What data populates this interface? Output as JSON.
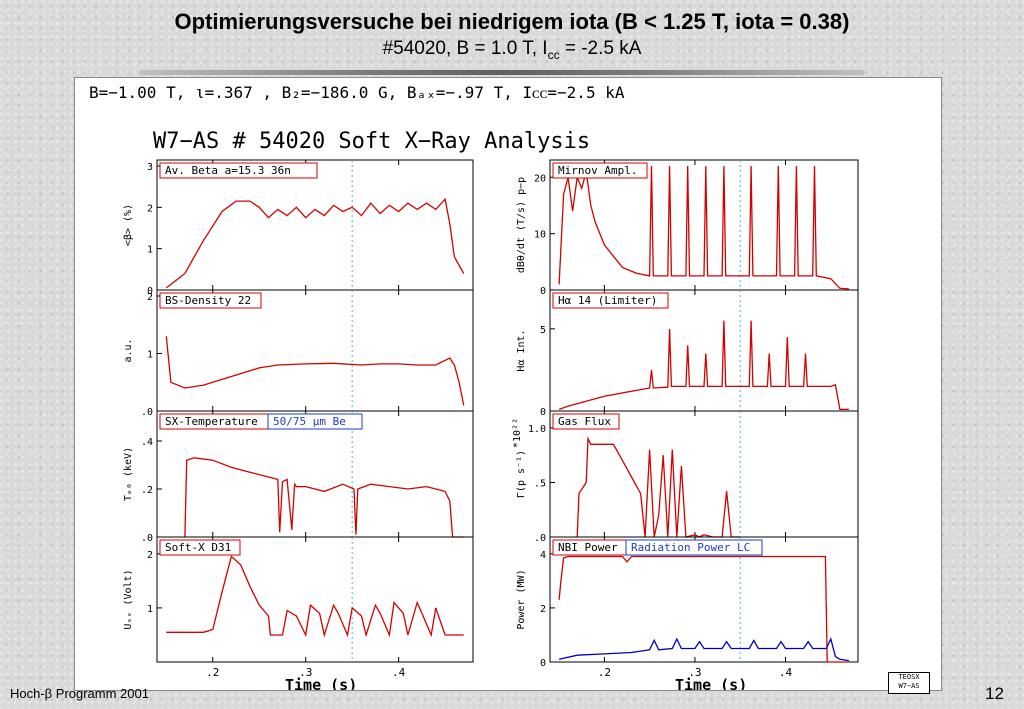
{
  "slide": {
    "title": "Optimierungsversuche bei niedrigem iota (B < 1.25 T, iota = 0.38)",
    "subtitle_main": "#54020, B = 1.0 T, I",
    "subtitle_sub": "cc",
    "subtitle_tail": " = -2.5 kA",
    "footer": "Hoch-β Programm 2001",
    "page": "12"
  },
  "figure": {
    "header_line": "B=−1.00 T, ι=.367  , B₂=−186.0 G, Bₐₓ=−.97   T, Iᴄᴄ=−2.5      kA",
    "title": "W7−AS # 54020   Soft X−Ray Analysis",
    "logo_line1": "TEOSX",
    "logo_line2": "W7−AS",
    "xlabel": "Time (s)"
  },
  "chart_data": [
    {
      "type": "line",
      "panel": "left-1",
      "title": "Av. Beta  a=15.3  36n",
      "ylabel": "<β> (%)",
      "ylim": [
        0,
        3
      ],
      "yticks": [
        "0",
        "1",
        "2",
        "3"
      ],
      "xlim": [
        0.14,
        0.48
      ],
      "marker_x": 0.35,
      "color": "#d40000",
      "x": [
        0.15,
        0.17,
        0.19,
        0.21,
        0.225,
        0.24,
        0.25,
        0.26,
        0.27,
        0.28,
        0.29,
        0.3,
        0.31,
        0.32,
        0.33,
        0.34,
        0.35,
        0.36,
        0.37,
        0.38,
        0.39,
        0.4,
        0.41,
        0.42,
        0.43,
        0.44,
        0.45,
        0.455,
        0.46,
        0.47
      ],
      "y": [
        0.05,
        0.4,
        1.2,
        1.9,
        2.15,
        2.15,
        2.0,
        1.75,
        1.95,
        1.8,
        2.0,
        1.75,
        1.95,
        1.8,
        2.05,
        1.9,
        2.0,
        1.8,
        2.1,
        1.85,
        2.05,
        1.9,
        2.1,
        1.95,
        2.1,
        1.95,
        2.2,
        1.6,
        0.8,
        0.4
      ]
    },
    {
      "type": "line",
      "panel": "left-2",
      "title": "BS-Density 22",
      "ylabel": "a.u.",
      "ylim": [
        0,
        2
      ],
      "yticks": [
        ".0",
        "1",
        "2"
      ],
      "xlim": [
        0.14,
        0.48
      ],
      "marker_x": 0.35,
      "color": "#d40000",
      "x": [
        0.15,
        0.155,
        0.17,
        0.19,
        0.22,
        0.25,
        0.27,
        0.3,
        0.33,
        0.36,
        0.38,
        0.4,
        0.42,
        0.44,
        0.455,
        0.46,
        0.465,
        0.47
      ],
      "y": [
        1.3,
        0.5,
        0.4,
        0.45,
        0.6,
        0.75,
        0.8,
        0.82,
        0.83,
        0.8,
        0.82,
        0.82,
        0.8,
        0.8,
        0.92,
        0.8,
        0.5,
        0.1
      ]
    },
    {
      "type": "line",
      "panel": "left-3",
      "title": "SX-Temperature",
      "label2": "50/75  μm Be",
      "ylabel": "Tₑ₀ (keV)",
      "ylim": [
        0,
        0.5
      ],
      "yticks": [
        ".0",
        ".2",
        ".4"
      ],
      "xlim": [
        0.14,
        0.48
      ],
      "marker_x": 0.35,
      "color": "#d40000",
      "x": [
        0.17,
        0.172,
        0.18,
        0.2,
        0.22,
        0.24,
        0.26,
        0.27,
        0.272,
        0.275,
        0.28,
        0.285,
        0.288,
        0.29,
        0.3,
        0.32,
        0.34,
        0.352,
        0.354,
        0.356,
        0.37,
        0.39,
        0.41,
        0.43,
        0.45,
        0.455,
        0.458,
        0.47
      ],
      "y": [
        0.0,
        0.32,
        0.33,
        0.32,
        0.29,
        0.27,
        0.25,
        0.24,
        0.02,
        0.23,
        0.24,
        0.03,
        0.22,
        0.21,
        0.21,
        0.19,
        0.22,
        0.2,
        0.01,
        0.2,
        0.22,
        0.21,
        0.2,
        0.21,
        0.19,
        0.15,
        0.0,
        0.0
      ]
    },
    {
      "type": "line",
      "panel": "left-4",
      "title": "Soft-X D31",
      "ylabel": "Uₛₓ (Volt)",
      "ylim": [
        0,
        2.2
      ],
      "yticks": [
        "1",
        "2"
      ],
      "xlim": [
        0.14,
        0.48
      ],
      "marker_x": 0.35,
      "color": "#d40000",
      "x": [
        0.15,
        0.19,
        0.2,
        0.21,
        0.22,
        0.23,
        0.24,
        0.25,
        0.26,
        0.262,
        0.275,
        0.28,
        0.29,
        0.3,
        0.305,
        0.315,
        0.32,
        0.33,
        0.335,
        0.345,
        0.35,
        0.36,
        0.365,
        0.375,
        0.38,
        0.39,
        0.395,
        0.405,
        0.41,
        0.42,
        0.425,
        0.435,
        0.44,
        0.45,
        0.47
      ],
      "y": [
        0.55,
        0.55,
        0.6,
        1.3,
        1.95,
        1.8,
        1.4,
        1.05,
        0.85,
        0.5,
        0.5,
        0.95,
        0.85,
        0.5,
        1.05,
        0.9,
        0.5,
        1.05,
        0.9,
        0.5,
        1.0,
        0.85,
        0.5,
        1.05,
        0.9,
        0.5,
        1.1,
        0.9,
        0.5,
        1.1,
        0.9,
        0.5,
        1.0,
        0.5,
        0.5
      ]
    },
    {
      "type": "line",
      "panel": "right-1",
      "title": "Mirnov Ampl.",
      "ylabel": "dBθ/dt (T/s) p−p",
      "ylim": [
        0,
        22
      ],
      "yticks": [
        "0",
        "10",
        "20"
      ],
      "xlim": [
        0.14,
        0.48
      ],
      "marker_x": 0.35,
      "color": "#d40000",
      "x": [
        0.15,
        0.155,
        0.16,
        0.165,
        0.17,
        0.175,
        0.18,
        0.185,
        0.19,
        0.2,
        0.21,
        0.22,
        0.235,
        0.25,
        0.252,
        0.254,
        0.27,
        0.272,
        0.274,
        0.29,
        0.292,
        0.294,
        0.31,
        0.312,
        0.314,
        0.33,
        0.332,
        0.334,
        0.36,
        0.362,
        0.364,
        0.39,
        0.392,
        0.394,
        0.41,
        0.412,
        0.414,
        0.43,
        0.432,
        0.434,
        0.45,
        0.46,
        0.47
      ],
      "y": [
        1,
        17,
        20,
        14,
        20,
        18,
        21,
        15,
        12,
        8,
        6,
        4,
        3,
        2.5,
        22,
        2.5,
        2.5,
        22,
        2.5,
        2.5,
        22,
        2.5,
        2.5,
        22,
        2.5,
        2.5,
        22,
        2.5,
        2.5,
        22,
        2.5,
        2.5,
        22,
        2.5,
        2.5,
        22,
        2.5,
        2.5,
        22,
        2.5,
        2.0,
        0.3,
        0.2
      ]
    },
    {
      "type": "line",
      "panel": "right-2",
      "title": "Hα 14 (Limiter)",
      "ylabel": "Hα Int.",
      "ylim": [
        0,
        7
      ],
      "yticks": [
        "0",
        "5"
      ],
      "xlim": [
        0.14,
        0.48
      ],
      "marker_x": 0.35,
      "color": "#d40000",
      "x": [
        0.15,
        0.16,
        0.2,
        0.24,
        0.25,
        0.252,
        0.254,
        0.27,
        0.272,
        0.274,
        0.29,
        0.292,
        0.294,
        0.31,
        0.312,
        0.314,
        0.33,
        0.332,
        0.334,
        0.36,
        0.362,
        0.364,
        0.38,
        0.382,
        0.384,
        0.4,
        0.402,
        0.404,
        0.42,
        0.422,
        0.424,
        0.44,
        0.45,
        0.455,
        0.46,
        0.47
      ],
      "y": [
        0.1,
        0.3,
        0.9,
        1.3,
        1.4,
        2.5,
        1.4,
        1.45,
        5.0,
        1.5,
        1.5,
        4.0,
        1.5,
        1.5,
        3.5,
        1.5,
        1.5,
        5.5,
        1.5,
        1.5,
        5.5,
        1.5,
        1.5,
        3.5,
        1.5,
        1.5,
        4.5,
        1.5,
        1.5,
        3.5,
        1.5,
        1.5,
        1.5,
        1.6,
        0.1,
        0.1
      ]
    },
    {
      "type": "line",
      "panel": "right-3",
      "title": "Gas Flux",
      "ylabel": "Γ(p s⁻¹)",
      "yscale_label": "*10²²",
      "ylim": [
        0,
        1.1
      ],
      "yticks": [
        ".0",
        ".5",
        "1.0"
      ],
      "xlim": [
        0.14,
        0.48
      ],
      "marker_x": 0.35,
      "color": "#d40000",
      "x": [
        0.17,
        0.172,
        0.18,
        0.182,
        0.185,
        0.21,
        0.22,
        0.23,
        0.24,
        0.245,
        0.25,
        0.255,
        0.26,
        0.265,
        0.27,
        0.275,
        0.28,
        0.285,
        0.29,
        0.3,
        0.305,
        0.31,
        0.32,
        0.33,
        0.335,
        0.34,
        0.345,
        0.35
      ],
      "y": [
        0.0,
        0.4,
        0.5,
        0.9,
        0.85,
        0.85,
        0.7,
        0.55,
        0.4,
        0.0,
        0.8,
        0.0,
        0.2,
        0.75,
        0.0,
        0.8,
        0.0,
        0.65,
        0.0,
        0.02,
        0.0,
        0.02,
        0.0,
        0.0,
        0.42,
        0.0,
        0.0,
        0.0
      ]
    },
    {
      "type": "line",
      "panel": "right-4",
      "title": "NBI Power",
      "label2": "Radiation Power LC",
      "ylabel": "Power (MW)",
      "ylim": [
        0,
        4.4
      ],
      "yticks": [
        "0",
        "2",
        "4"
      ],
      "xlim": [
        0.14,
        0.48
      ],
      "marker_x": 0.35,
      "series": [
        {
          "name": "NBI Power",
          "color": "#d40000",
          "x": [
            0.15,
            0.152,
            0.155,
            0.16,
            0.2,
            0.22,
            0.225,
            0.23,
            0.3,
            0.4,
            0.44,
            0.444,
            0.446,
            0.47
          ],
          "y": [
            2.3,
            3.0,
            3.85,
            3.9,
            3.9,
            3.9,
            3.7,
            3.9,
            3.9,
            3.9,
            3.9,
            3.9,
            0.0,
            0.0
          ]
        },
        {
          "name": "Radiation Power LC",
          "color": "#0000c0",
          "x": [
            0.15,
            0.17,
            0.2,
            0.23,
            0.25,
            0.255,
            0.26,
            0.275,
            0.28,
            0.285,
            0.3,
            0.305,
            0.31,
            0.33,
            0.335,
            0.34,
            0.36,
            0.365,
            0.37,
            0.39,
            0.395,
            0.4,
            0.42,
            0.425,
            0.43,
            0.445,
            0.45,
            0.455,
            0.46,
            0.47
          ],
          "y": [
            0.1,
            0.25,
            0.3,
            0.35,
            0.45,
            0.8,
            0.45,
            0.5,
            0.85,
            0.5,
            0.5,
            0.75,
            0.5,
            0.5,
            0.75,
            0.5,
            0.5,
            0.8,
            0.5,
            0.5,
            0.75,
            0.5,
            0.5,
            0.75,
            0.5,
            0.5,
            0.85,
            0.2,
            0.1,
            0.05
          ]
        }
      ]
    }
  ]
}
